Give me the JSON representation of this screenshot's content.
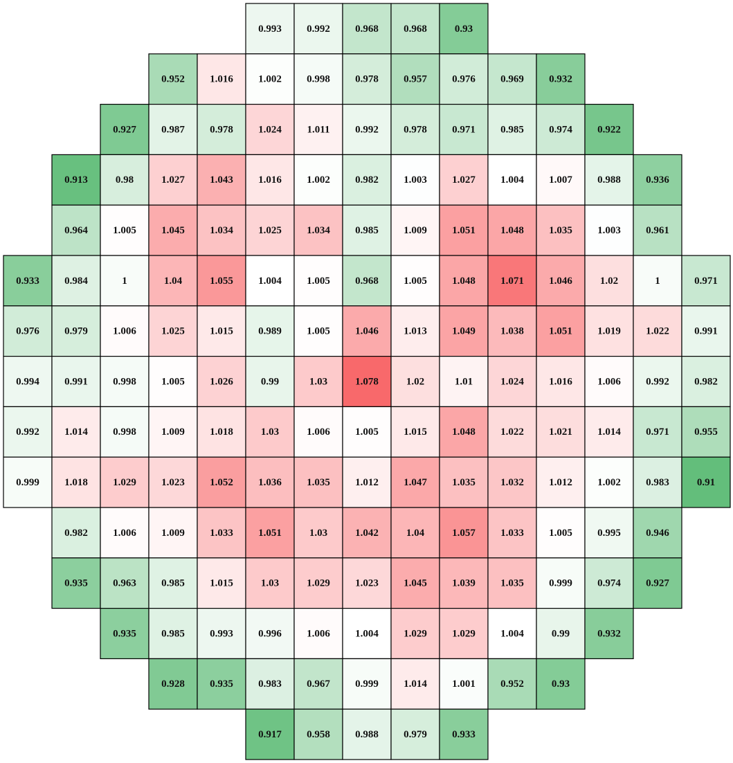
{
  "chart_data": {
    "type": "heatmap",
    "colors": {
      "low": "#63be7b",
      "mid": "#ffffff",
      "high": "#f8696b"
    },
    "values": [
      [
        null,
        null,
        null,
        null,
        null,
        0.993,
        0.992,
        0.968,
        0.968,
        0.93,
        null,
        null,
        null,
        null,
        null
      ],
      [
        null,
        null,
        null,
        0.952,
        1.016,
        1.002,
        0.998,
        0.978,
        0.957,
        0.976,
        0.969,
        0.932,
        null,
        null,
        null
      ],
      [
        null,
        null,
        0.927,
        0.987,
        0.978,
        1.024,
        1.011,
        0.992,
        0.978,
        0.971,
        0.985,
        0.974,
        0.922,
        null,
        null
      ],
      [
        null,
        0.913,
        0.98,
        1.027,
        1.043,
        1.016,
        1.002,
        0.982,
        1.003,
        1.027,
        1.004,
        1.007,
        0.988,
        0.936,
        null
      ],
      [
        null,
        0.964,
        1.005,
        1.045,
        1.034,
        1.025,
        1.034,
        0.985,
        1.009,
        1.051,
        1.048,
        1.035,
        1.003,
        0.961,
        null
      ],
      [
        0.933,
        0.984,
        1,
        1.04,
        1.055,
        1.004,
        1.005,
        0.968,
        1.005,
        1.048,
        1.071,
        1.046,
        1.02,
        1,
        0.971
      ],
      [
        0.976,
        0.979,
        1.006,
        1.025,
        1.015,
        0.989,
        1.005,
        1.046,
        1.013,
        1.049,
        1.038,
        1.051,
        1.019,
        1.022,
        0.991
      ],
      [
        0.994,
        0.991,
        0.998,
        1.005,
        1.026,
        0.99,
        1.03,
        1.078,
        1.02,
        1.01,
        1.024,
        1.016,
        1.006,
        0.992,
        0.982
      ],
      [
        0.992,
        1.014,
        0.998,
        1.009,
        1.018,
        1.03,
        1.006,
        1.005,
        1.015,
        1.048,
        1.022,
        1.021,
        1.014,
        0.971,
        0.955
      ],
      [
        0.999,
        1.018,
        1.029,
        1.023,
        1.052,
        1.036,
        1.035,
        1.012,
        1.047,
        1.035,
        1.032,
        1.012,
        1.002,
        0.983,
        0.91
      ],
      [
        null,
        0.982,
        1.006,
        1.009,
        1.033,
        1.051,
        1.03,
        1.042,
        1.04,
        1.057,
        1.033,
        1.005,
        0.995,
        0.946,
        null
      ],
      [
        null,
        0.935,
        0.963,
        0.985,
        1.015,
        1.03,
        1.029,
        1.023,
        1.045,
        1.039,
        1.035,
        0.999,
        0.974,
        0.927,
        null
      ],
      [
        null,
        null,
        0.935,
        0.985,
        0.993,
        0.996,
        1.006,
        1.004,
        1.029,
        1.029,
        1.004,
        0.99,
        0.932,
        null,
        null
      ],
      [
        null,
        null,
        null,
        0.928,
        0.935,
        0.983,
        0.967,
        0.999,
        1.014,
        1.001,
        0.952,
        0.93,
        null,
        null,
        null
      ],
      [
        null,
        null,
        null,
        null,
        null,
        0.917,
        0.958,
        0.988,
        0.979,
        0.933,
        null,
        null,
        null,
        null,
        null
      ]
    ]
  }
}
